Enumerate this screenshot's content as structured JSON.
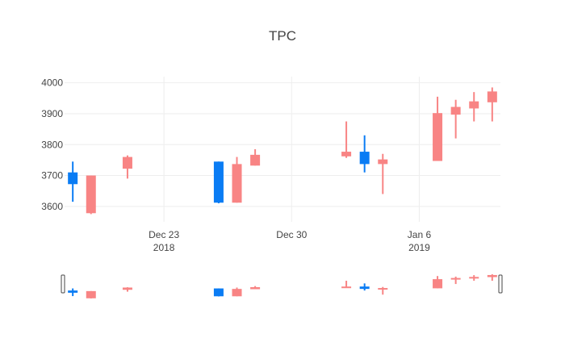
{
  "colors": {
    "increasing": "#f88484",
    "decreasing": "#0a7cf4",
    "grid": "#eeeeee",
    "text": "#444444",
    "slider_border": "#444444"
  },
  "chart_data": {
    "type": "candlestick",
    "title": "TPC",
    "xlabel": "",
    "ylabel": "",
    "ylim": [
      3550,
      4020
    ],
    "grid": true,
    "rangeslider": true,
    "x_ticks": [
      {
        "date": "2018-12-23",
        "label": "Dec 23",
        "sublabel": "2018"
      },
      {
        "date": "2018-12-30",
        "label": "Dec 30",
        "sublabel": ""
      },
      {
        "date": "2019-01-06",
        "label": "Jan 6",
        "sublabel": "2019"
      }
    ],
    "y_ticks": [
      {
        "value": 3600,
        "label": "3600"
      },
      {
        "value": 3700,
        "label": "3700"
      },
      {
        "value": 3800,
        "label": "3800"
      },
      {
        "value": 3900,
        "label": "3900"
      },
      {
        "value": 4000,
        "label": "4000"
      }
    ],
    "candles": [
      {
        "date": "2018-12-18",
        "open": 3710,
        "high": 3745,
        "low": 3615,
        "close": 3672
      },
      {
        "date": "2018-12-19",
        "open": 3578,
        "high": 3700,
        "low": 3575,
        "close": 3700
      },
      {
        "date": "2018-12-21",
        "open": 3722,
        "high": 3765,
        "low": 3690,
        "close": 3760
      },
      {
        "date": "2018-12-26",
        "open": 3745,
        "high": 3745,
        "low": 3610,
        "close": 3612
      },
      {
        "date": "2018-12-27",
        "open": 3612,
        "high": 3760,
        "low": 3612,
        "close": 3737
      },
      {
        "date": "2018-12-28",
        "open": 3732,
        "high": 3785,
        "low": 3732,
        "close": 3767
      },
      {
        "date": "2019-01-02",
        "open": 3762,
        "high": 3875,
        "low": 3757,
        "close": 3777
      },
      {
        "date": "2019-01-03",
        "open": 3777,
        "high": 3830,
        "low": 3710,
        "close": 3737
      },
      {
        "date": "2019-01-04",
        "open": 3737,
        "high": 3770,
        "low": 3640,
        "close": 3752
      },
      {
        "date": "2019-01-07",
        "open": 3747,
        "high": 3955,
        "low": 3747,
        "close": 3902
      },
      {
        "date": "2019-01-08",
        "open": 3897,
        "high": 3945,
        "low": 3820,
        "close": 3922
      },
      {
        "date": "2019-01-09",
        "open": 3917,
        "high": 3970,
        "low": 3875,
        "close": 3940
      },
      {
        "date": "2019-01-10",
        "open": 3937,
        "high": 3985,
        "low": 3875,
        "close": 3972
      }
    ]
  }
}
